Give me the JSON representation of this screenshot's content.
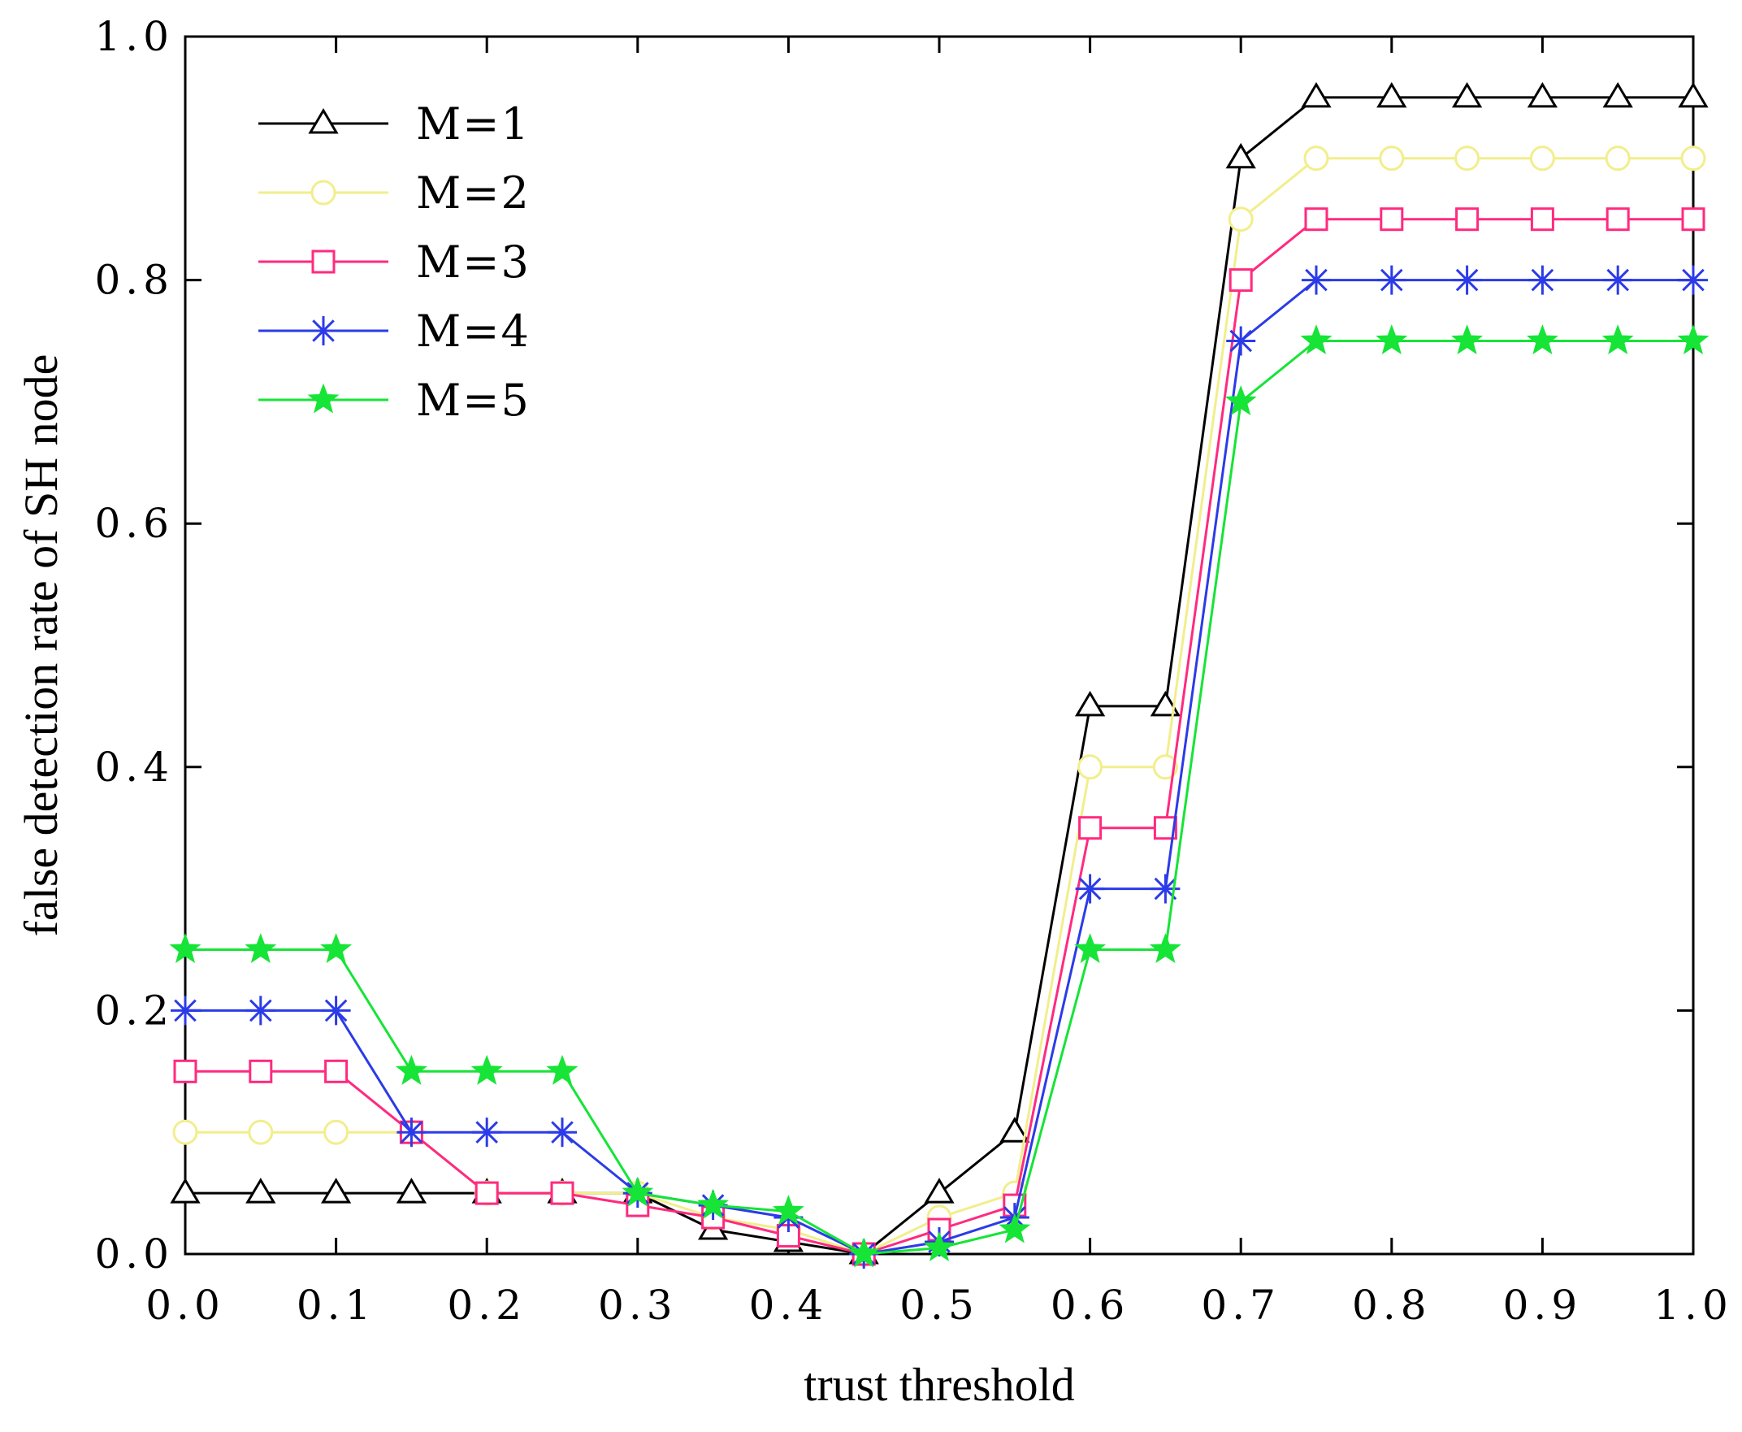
{
  "chart_data": {
    "type": "line",
    "title": "",
    "xlabel": "trust threshold",
    "ylabel": "false detection rate of SH node",
    "xlim": [
      0.0,
      1.0
    ],
    "ylim": [
      0.0,
      1.0
    ],
    "grid": false,
    "legend_position": "top-left",
    "x": [
      0.0,
      0.05,
      0.1,
      0.15,
      0.2,
      0.25,
      0.3,
      0.35,
      0.4,
      0.45,
      0.5,
      0.55,
      0.6,
      0.65,
      0.7,
      0.75,
      0.8,
      0.85,
      0.9,
      0.95,
      1.0
    ],
    "x_tick_values": [
      0.0,
      0.1,
      0.2,
      0.3,
      0.4,
      0.5,
      0.6,
      0.7,
      0.8,
      0.9,
      1.0
    ],
    "x_tick_labels": [
      "0.0",
      "0.1",
      "0.2",
      "0.3",
      "0.4",
      "0.5",
      "0.6",
      "0.7",
      "0.8",
      "0.9",
      "1.0"
    ],
    "y_tick_values": [
      0.0,
      0.2,
      0.4,
      0.6,
      0.8,
      1.0
    ],
    "y_tick_labels": [
      "0.0",
      "0.2",
      "0.4",
      "0.6",
      "0.8",
      "1.0"
    ],
    "series": [
      {
        "name": "M=1",
        "color": "#000000",
        "marker": "triangle",
        "values": [
          0.05,
          0.05,
          0.05,
          0.05,
          0.05,
          0.05,
          0.05,
          0.02,
          0.01,
          0.0,
          0.05,
          0.1,
          0.45,
          0.45,
          0.9,
          0.95,
          0.95,
          0.95,
          0.95,
          0.95,
          0.95
        ]
      },
      {
        "name": "M=2",
        "color": "#f2ee8c",
        "marker": "circle",
        "values": [
          0.1,
          0.1,
          0.1,
          0.1,
          0.05,
          0.05,
          0.05,
          0.03,
          0.02,
          0.0,
          0.03,
          0.05,
          0.4,
          0.4,
          0.85,
          0.9,
          0.9,
          0.9,
          0.9,
          0.9,
          0.9
        ]
      },
      {
        "name": "M=3",
        "color": "#ff2a7f",
        "marker": "square",
        "values": [
          0.15,
          0.15,
          0.15,
          0.1,
          0.05,
          0.05,
          0.04,
          0.03,
          0.015,
          0.0,
          0.02,
          0.04,
          0.35,
          0.35,
          0.8,
          0.85,
          0.85,
          0.85,
          0.85,
          0.85,
          0.85
        ]
      },
      {
        "name": "M=4",
        "color": "#2b3be8",
        "marker": "asterisk",
        "values": [
          0.2,
          0.2,
          0.2,
          0.1,
          0.1,
          0.1,
          0.05,
          0.04,
          0.03,
          0.0,
          0.01,
          0.03,
          0.3,
          0.3,
          0.75,
          0.8,
          0.8,
          0.8,
          0.8,
          0.8,
          0.8
        ]
      },
      {
        "name": "M=5",
        "color": "#16e436",
        "marker": "star",
        "values": [
          0.25,
          0.25,
          0.25,
          0.15,
          0.15,
          0.15,
          0.05,
          0.04,
          0.035,
          0.0,
          0.005,
          0.02,
          0.25,
          0.25,
          0.7,
          0.75,
          0.75,
          0.75,
          0.75,
          0.75,
          0.75
        ]
      }
    ]
  }
}
